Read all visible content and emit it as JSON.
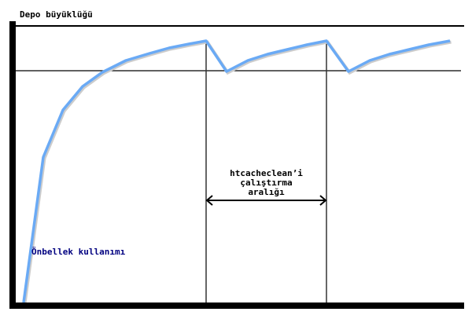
{
  "labels": {
    "y_axis": "Depo büyüklüğü",
    "usage": "Önbellek kullanımı",
    "interval_line1": "htcacheclean’i",
    "interval_line2": "çalıştırma",
    "interval_line3": "aralığı"
  },
  "colors": {
    "usage_curve": "#6aaaf5",
    "usage_label": "#000080",
    "axes": "#000000"
  }
}
